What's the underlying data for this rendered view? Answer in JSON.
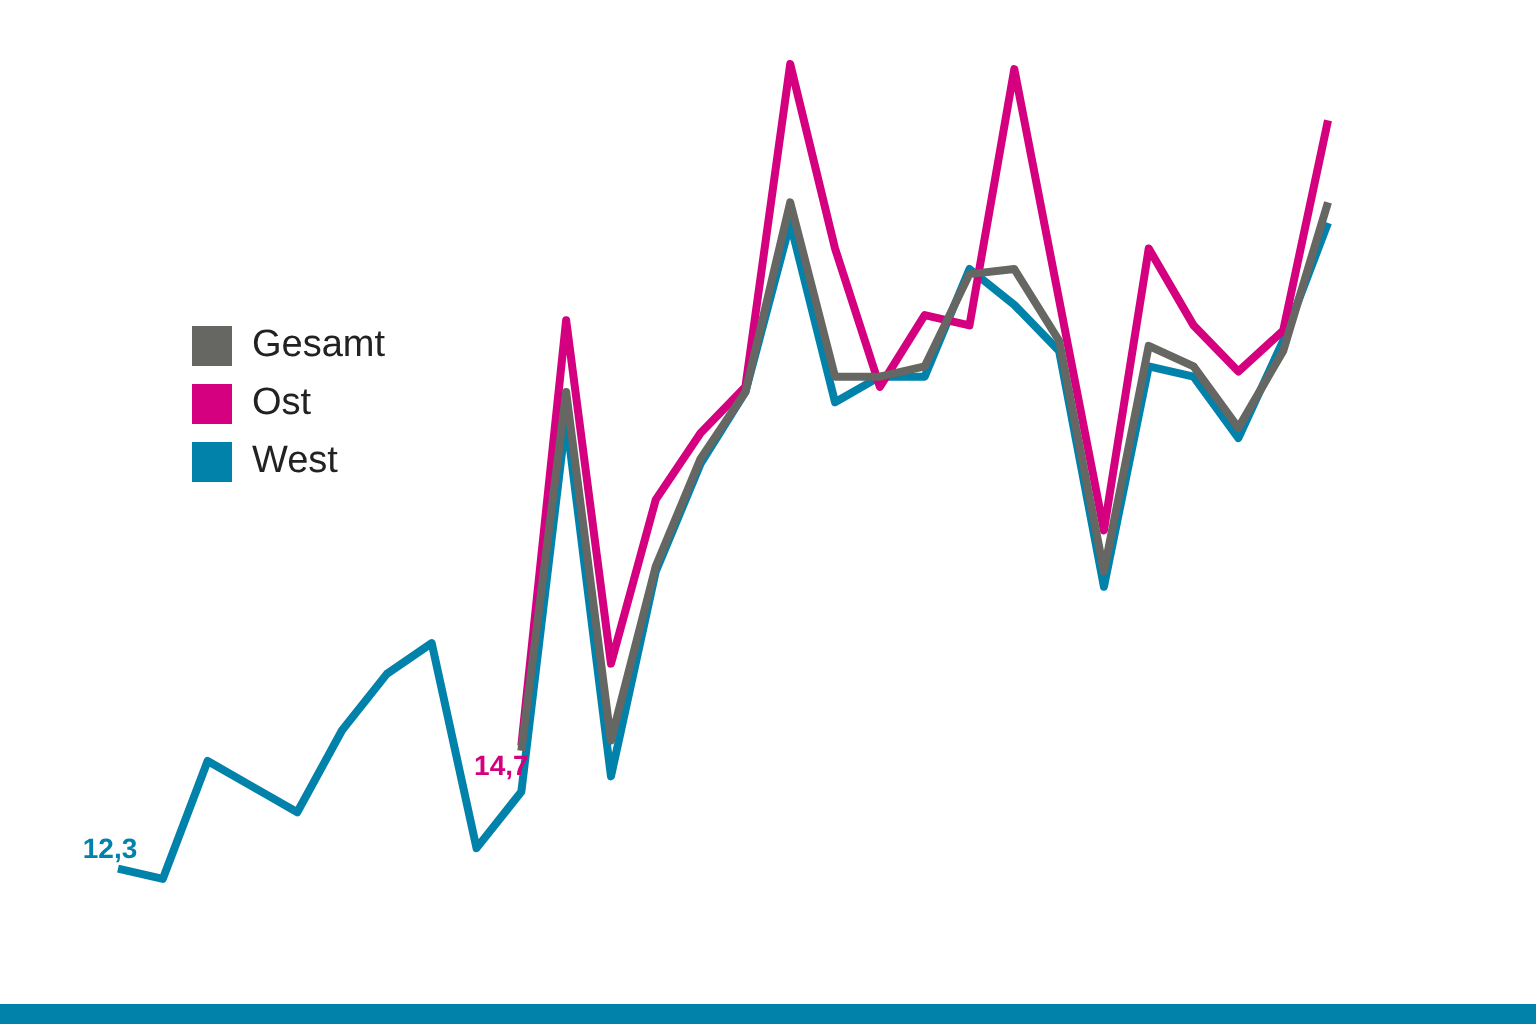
{
  "chart_data": {
    "type": "line",
    "categories": [
      null,
      null,
      null,
      null,
      null,
      null,
      null,
      null,
      null,
      null,
      null,
      null,
      null,
      null,
      null,
      null,
      null,
      null,
      null,
      null,
      null,
      null,
      null,
      null,
      null,
      null,
      null,
      null
    ],
    "series": [
      {
        "name": "Gesamt",
        "color": "#666663",
        "values": [
          null,
          null,
          null,
          null,
          null,
          null,
          null,
          null,
          null,
          14.6,
          21.6,
          14.8,
          18.2,
          20.3,
          21.6,
          25.3,
          21.9,
          21.9,
          22.1,
          23.9,
          24.0,
          22.6,
          18.1,
          22.5,
          22.1,
          20.9,
          22.4,
          25.3
        ]
      },
      {
        "name": "Ost",
        "color": "#d4007f",
        "values": [
          null,
          null,
          null,
          null,
          null,
          null,
          null,
          null,
          null,
          14.7,
          23.0,
          16.3,
          19.5,
          20.8,
          21.7,
          28.0,
          24.4,
          21.7,
          23.1,
          22.9,
          27.9,
          23.4,
          18.9,
          24.4,
          22.9,
          22.0,
          22.8,
          26.9
        ],
        "value_labels": [
          null,
          null,
          null,
          null,
          null,
          null,
          null,
          null,
          null,
          "14,7",
          null,
          null,
          null,
          null,
          null,
          null,
          null,
          null,
          null,
          null,
          null,
          null,
          null,
          null,
          null,
          null,
          null,
          null
        ]
      },
      {
        "name": "West",
        "color": "#0082aa",
        "values": [
          12.3,
          12.1,
          14.4,
          13.9,
          13.4,
          15.0,
          16.1,
          16.7,
          12.7,
          13.8,
          21.1,
          14.1,
          18.1,
          20.2,
          21.6,
          24.9,
          21.4,
          21.9,
          21.9,
          24.0,
          23.3,
          22.4,
          17.8,
          22.1,
          21.9,
          20.7,
          22.6,
          24.9
        ],
        "value_labels": [
          "12,3",
          null,
          null,
          null,
          null,
          null,
          null,
          null,
          null,
          null,
          null,
          null,
          null,
          null,
          null,
          null,
          null,
          null,
          null,
          null,
          null,
          null,
          null,
          null,
          null,
          null,
          null,
          null
        ]
      }
    ],
    "tick_labels": false,
    "grid": false,
    "legend": "left",
    "marker": "none",
    "line_style": "solid"
  }
}
